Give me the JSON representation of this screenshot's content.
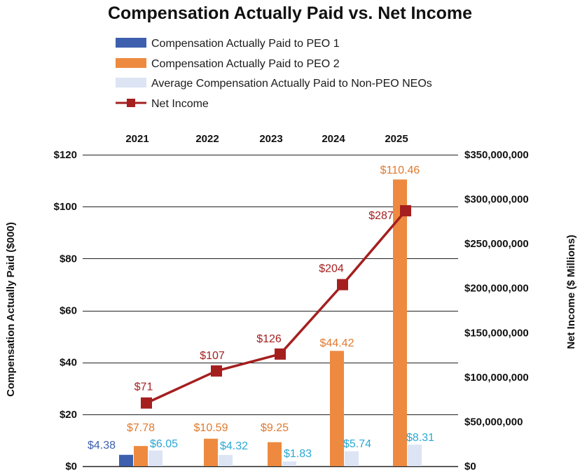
{
  "colors": {
    "peo1": "#3d5fad",
    "peo2": "#ed8a3f",
    "non_peo": "#dde4f4",
    "net_income": "#a51f1f",
    "peo1_label": "#3d5fad",
    "peo2_label": "#e07a2e",
    "non_peo_label": "#2aa8d6",
    "net_income_label": "#a51f1f",
    "grid": "#222222"
  },
  "chart_data": {
    "type": "bar+line",
    "title": "Compensation Actually Paid vs. Net Income",
    "categories": [
      "2021",
      "2022",
      "2023",
      "2024",
      "2025"
    ],
    "series": [
      {
        "key": "peo1",
        "name": "Compensation Actually Paid to PEO 1",
        "kind": "bar",
        "axis": "left",
        "values": [
          4.38,
          null,
          null,
          null,
          null
        ],
        "labels": [
          "$4.38",
          null,
          null,
          null,
          null
        ]
      },
      {
        "key": "peo2",
        "name": "Compensation Actually Paid to PEO 2",
        "kind": "bar",
        "axis": "left",
        "values": [
          7.78,
          10.59,
          9.25,
          44.42,
          110.46
        ],
        "labels": [
          "$7.78",
          "$10.59",
          "$9.25",
          "$44.42",
          "$110.46"
        ]
      },
      {
        "key": "non_peo",
        "name": "Average Compensation Actually Paid to Non-PEO NEOs",
        "kind": "bar",
        "axis": "left",
        "values": [
          6.05,
          4.32,
          1.83,
          5.74,
          8.31
        ],
        "labels": [
          "$6.05",
          "$4.32",
          "$1.83",
          "$5.74",
          "$8.31"
        ]
      },
      {
        "key": "net_income",
        "name": "Net Income",
        "kind": "line",
        "axis": "right",
        "values": [
          71000000,
          107000000,
          126000000,
          204000000,
          287000000
        ],
        "labels": [
          "$71",
          "$107",
          "$126",
          "$204",
          "$287"
        ]
      }
    ],
    "left_axis": {
      "title": "Compensation Actually Paid ($000)",
      "range": [
        0,
        120
      ],
      "ticks": [
        0,
        20,
        40,
        60,
        80,
        100,
        120
      ],
      "tick_labels": [
        "$0",
        "$20",
        "$40",
        "$60",
        "$80",
        "$100",
        "$120"
      ]
    },
    "right_axis": {
      "title": "Net Income ($ Millions)",
      "range": [
        0,
        350000000
      ],
      "ticks": [
        0,
        50000000,
        100000000,
        150000000,
        200000000,
        250000000,
        300000000,
        350000000
      ],
      "tick_labels": [
        "$0",
        "$50,000,000",
        "$100,000,000",
        "$150,000,000",
        "$200,000,000",
        "$250,000,000",
        "$300,000,000",
        "$350,000,000"
      ]
    },
    "legend_position": "top",
    "category_axis_position": "top",
    "grid": true
  }
}
